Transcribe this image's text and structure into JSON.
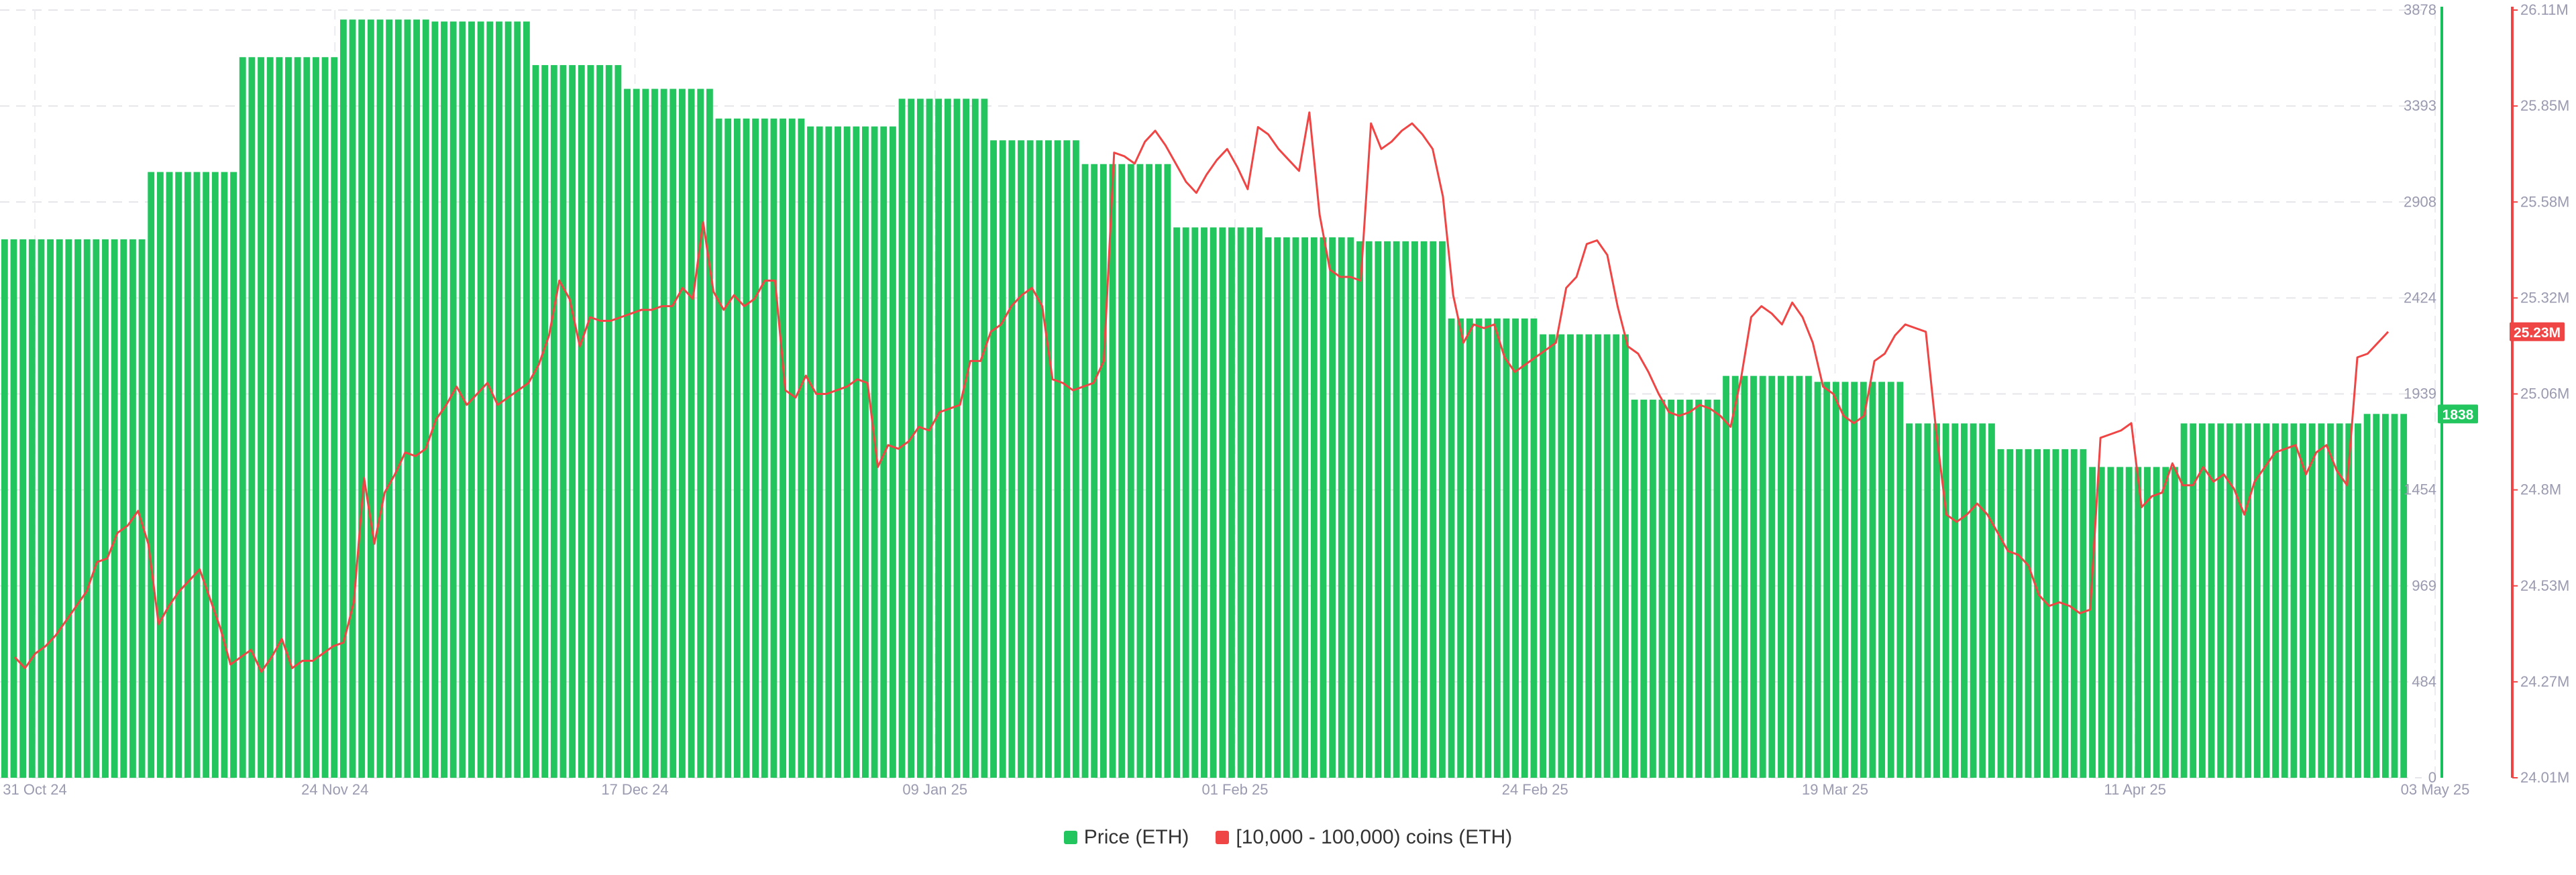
{
  "chart_data": {
    "type": "bar+line",
    "x_ticks": [
      "31 Oct 24",
      "24 Nov 24",
      "17 Dec 24",
      "09 Jan 25",
      "01 Feb 25",
      "24 Feb 25",
      "19 Mar 25",
      "11 Apr 25",
      "03 May 25"
    ],
    "left_axis": {
      "ticks": [
        "0",
        "484",
        "969",
        "1454",
        "1939",
        "2424",
        "2908",
        "3393",
        "3878"
      ],
      "min": 0,
      "max": 3878,
      "color": "#16c05a"
    },
    "right_axis": {
      "ticks": [
        "24.01M",
        "24.27M",
        "24.53M",
        "24.8M",
        "25.06M",
        "25.32M",
        "25.58M",
        "25.85M",
        "26.11M"
      ],
      "min": 24.01,
      "max": 26.11,
      "unit": "M",
      "color": "#f04545"
    },
    "series": [
      {
        "name": "Price (ETH)",
        "kind": "bar",
        "color": "#22c55e",
        "last_label": "1838",
        "values": [
          2720,
          2720,
          2720,
          2720,
          2720,
          2720,
          2720,
          2720,
          2720,
          2720,
          2720,
          2720,
          2720,
          2720,
          2720,
          2720,
          3060,
          3060,
          3060,
          3060,
          3060,
          3060,
          3060,
          3060,
          3060,
          3060,
          3640,
          3640,
          3640,
          3640,
          3640,
          3640,
          3640,
          3640,
          3640,
          3640,
          3640,
          3830,
          3830,
          3830,
          3830,
          3830,
          3830,
          3830,
          3830,
          3830,
          3830,
          3820,
          3820,
          3820,
          3820,
          3820,
          3820,
          3820,
          3820,
          3820,
          3820,
          3820,
          3600,
          3600,
          3600,
          3600,
          3600,
          3600,
          3600,
          3600,
          3600,
          3600,
          3480,
          3480,
          3480,
          3480,
          3480,
          3480,
          3480,
          3480,
          3480,
          3480,
          3330,
          3330,
          3330,
          3330,
          3330,
          3330,
          3330,
          3330,
          3330,
          3330,
          3290,
          3290,
          3290,
          3290,
          3290,
          3290,
          3290,
          3290,
          3290,
          3290,
          3430,
          3430,
          3430,
          3430,
          3430,
          3430,
          3430,
          3430,
          3430,
          3430,
          3220,
          3220,
          3220,
          3220,
          3220,
          3220,
          3220,
          3220,
          3220,
          3220,
          3100,
          3100,
          3100,
          3100,
          3100,
          3100,
          3100,
          3100,
          3100,
          3100,
          2780,
          2780,
          2780,
          2780,
          2780,
          2780,
          2780,
          2780,
          2780,
          2780,
          2730,
          2730,
          2730,
          2730,
          2730,
          2730,
          2730,
          2730,
          2730,
          2730,
          2710,
          2710,
          2710,
          2710,
          2710,
          2710,
          2710,
          2710,
          2710,
          2710,
          2320,
          2320,
          2320,
          2320,
          2320,
          2320,
          2320,
          2320,
          2320,
          2320,
          2240,
          2240,
          2240,
          2240,
          2240,
          2240,
          2240,
          2240,
          2240,
          2240,
          1910,
          1910,
          1910,
          1910,
          1910,
          1910,
          1910,
          1910,
          1910,
          1910,
          2030,
          2030,
          2030,
          2030,
          2030,
          2030,
          2030,
          2030,
          2030,
          2030,
          2000,
          2000,
          2000,
          2000,
          2000,
          2000,
          2000,
          2000,
          2000,
          2000,
          1790,
          1790,
          1790,
          1790,
          1790,
          1790,
          1790,
          1790,
          1790,
          1790,
          1660,
          1660,
          1660,
          1660,
          1660,
          1660,
          1660,
          1660,
          1660,
          1660,
          1570,
          1570,
          1570,
          1570,
          1570,
          1570,
          1570,
          1570,
          1570,
          1570,
          1790,
          1790,
          1790,
          1790,
          1790,
          1790,
          1790,
          1790,
          1790,
          1790,
          1790,
          1790,
          1790,
          1790,
          1790,
          1790,
          1790,
          1790,
          1790,
          1790,
          1838,
          1838,
          1838,
          1838,
          1838
        ]
      },
      {
        "name": "[10,000 - 100,000) coins (ETH)",
        "kind": "line",
        "color": "#f04545",
        "last_label": "25.23M",
        "values": [
          24.34,
          24.31,
          24.35,
          24.37,
          24.4,
          24.44,
          24.48,
          24.52,
          24.6,
          24.61,
          24.68,
          24.7,
          24.74,
          24.65,
          24.43,
          24.48,
          24.52,
          24.55,
          24.58,
          24.5,
          24.42,
          24.32,
          24.34,
          24.36,
          24.3,
          24.34,
          24.39,
          24.31,
          24.33,
          24.33,
          24.35,
          24.37,
          24.38,
          24.49,
          24.83,
          24.65,
          24.79,
          24.84,
          24.9,
          24.89,
          24.91,
          24.99,
          25.03,
          25.08,
          25.03,
          25.06,
          25.09,
          25.03,
          25.05,
          25.07,
          25.09,
          25.14,
          25.22,
          25.37,
          25.32,
          25.19,
          25.27,
          25.26,
          25.26,
          25.27,
          25.28,
          25.29,
          25.29,
          25.3,
          25.3,
          25.35,
          25.32,
          25.53,
          25.34,
          25.29,
          25.33,
          25.3,
          25.32,
          25.37,
          25.37,
          25.07,
          25.05,
          25.11,
          25.06,
          25.06,
          25.07,
          25.08,
          25.1,
          25.09,
          24.86,
          24.92,
          24.91,
          24.93,
          24.97,
          24.96,
          25.01,
          25.02,
          25.03,
          25.15,
          25.15,
          25.23,
          25.25,
          25.3,
          25.33,
          25.35,
          25.3,
          25.1,
          25.09,
          25.07,
          25.08,
          25.09,
          25.15,
          25.72,
          25.71,
          25.69,
          25.75,
          25.78,
          25.74,
          25.69,
          25.64,
          25.61,
          25.66,
          25.7,
          25.73,
          25.68,
          25.62,
          25.79,
          25.77,
          25.73,
          25.7,
          25.67,
          25.83,
          25.55,
          25.4,
          25.38,
          25.38,
          25.37,
          25.8,
          25.73,
          25.75,
          25.78,
          25.8,
          25.77,
          25.73,
          25.6,
          25.33,
          25.2,
          25.25,
          25.24,
          25.25,
          25.16,
          25.12,
          25.14,
          25.16,
          25.18,
          25.2,
          25.35,
          25.38,
          25.47,
          25.48,
          25.44,
          25.3,
          25.19,
          25.17,
          25.12,
          25.06,
          25.01,
          25.0,
          25.01,
          25.03,
          25.02,
          25.0,
          24.97,
          25.1,
          25.27,
          25.3,
          25.28,
          25.25,
          25.31,
          25.27,
          25.2,
          25.08,
          25.06,
          25.0,
          24.98,
          25.0,
          25.15,
          25.17,
          25.22,
          25.25,
          25.24,
          25.23,
          24.96,
          24.73,
          24.71,
          24.73,
          24.76,
          24.73,
          24.68,
          24.63,
          24.62,
          24.59,
          24.51,
          24.48,
          24.49,
          24.48,
          24.46,
          24.47,
          24.94,
          24.95,
          24.96,
          24.98,
          24.75,
          24.78,
          24.79,
          24.87,
          24.81,
          24.81,
          24.86,
          24.82,
          24.84,
          24.8,
          24.73,
          24.82,
          24.86,
          24.9,
          24.91,
          24.92,
          24.84,
          24.9,
          24.92,
          24.85,
          24.81,
          25.16,
          25.17,
          25.2,
          25.23
        ]
      }
    ],
    "legend_placement": "bottom-center",
    "grid": true
  }
}
